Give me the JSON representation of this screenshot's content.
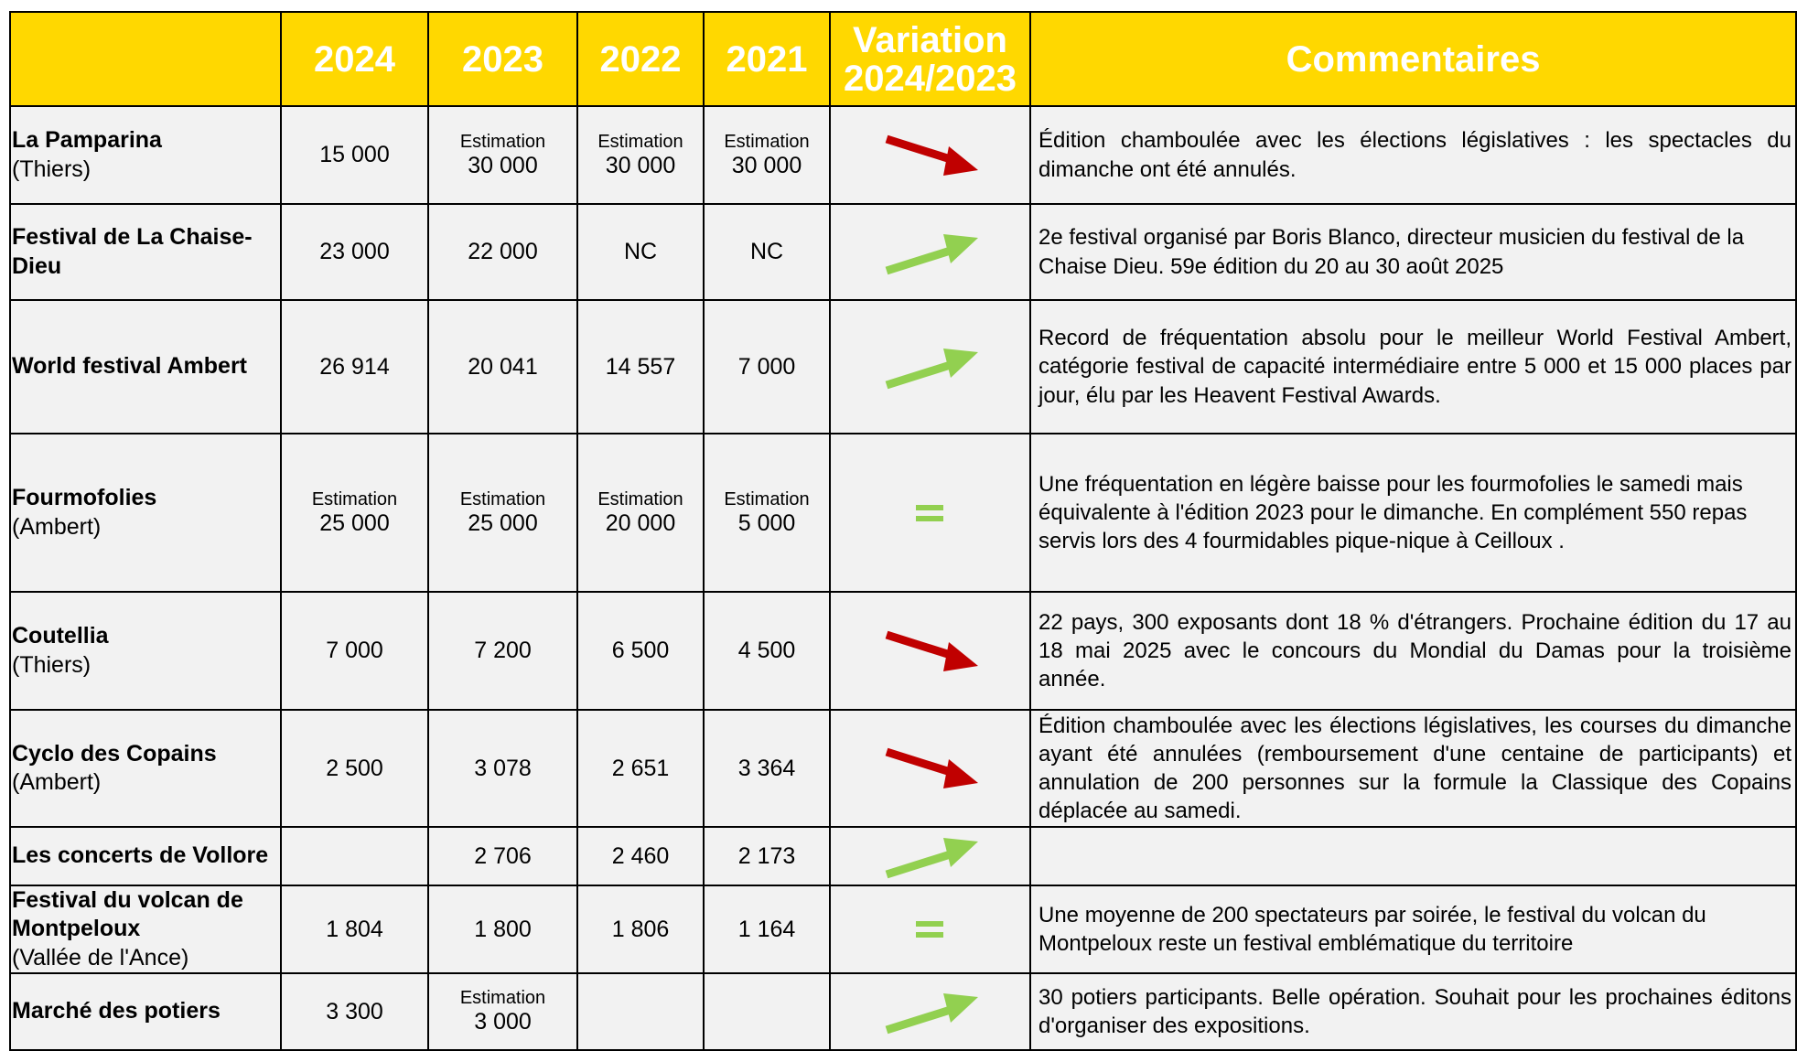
{
  "table": {
    "header": [
      "2024",
      "2023",
      "2022",
      "2021",
      "Variation 2024/2023",
      "Commentaires"
    ],
    "rows": [
      {
        "name": "La Pamparina",
        "place": "(Thiers)",
        "values": [
          "15 000",
          {
            "note": "Estimation",
            "value": "30 000"
          },
          {
            "note": "Estimation",
            "value": "30 000"
          },
          {
            "note": "Estimation",
            "value": "30 000"
          }
        ],
        "comment": "Édition chamboulée avec les élections législatives : les spectacles du dimanche ont été annulés."
      },
      {
        "name": "Festival de La Chaise-Dieu",
        "values": [
          "23 000",
          "22 000",
          "NC",
          "NC"
        ],
        "comment": "2e festival organisé par Boris Blanco, directeur musicien du festival de la Chaise Dieu. 59e édition du 20 au 30 août 2025"
      },
      {
        "name": "World festival Ambert",
        "values": [
          "26 914",
          "20 041",
          "14 557",
          "7 000"
        ],
        "comment": "Record de fréquentation absolu pour le meilleur World Festival Ambert, catégorie festival de capacité intermédiaire entre 5 000 et 15 000 places par jour, élu par les Heavent Festival Awards."
      },
      {
        "name": "Fourmofolies",
        "place": "(Ambert)",
        "values": [
          {
            "note": "Estimation",
            "value": "25 000"
          },
          {
            "note": "Estimation",
            "value": "25 000"
          },
          {
            "note": "Estimation",
            "value": "20 000"
          },
          {
            "note": "Estimation",
            "value": "5 000"
          }
        ],
        "comment": "Une fréquentation en légère baisse pour les fourmofolies le samedi mais équivalente à l'édition 2023 pour le dimanche. En complément 550 repas servis lors des 4 fourmidables pique-nique à Ceilloux ."
      },
      {
        "name": "Coutellia",
        "place": "(Thiers)",
        "values": [
          "7 000",
          "7 200",
          "6 500",
          "4 500"
        ],
        "comment": "22 pays, 300 exposants dont 18 % d'étrangers. Prochaine édition du 17 au 18 mai 2025 avec le concours du Mondial du Damas pour la troisième année."
      },
      {
        "name": "Cyclo des Copains",
        "place": "(Ambert)",
        "values": [
          "2 500",
          "3 078",
          "2 651",
          "3 364"
        ],
        "comment": "Édition chamboulée avec les élections législatives, les courses du dimanche ayant été annulées (remboursement d'une centaine de participants) et annulation de 200 personnes sur la formule la Classique des Copains déplacée au samedi."
      },
      {
        "name": "Les concerts de Vollore",
        "values": [
          null,
          "2 706",
          "2 460",
          "2 173"
        ],
        "comment": null
      },
      {
        "name": "Festival du volcan de Montpeloux",
        "place": "(Vallée de l'Ance)",
        "values": [
          "1 804",
          "1 800",
          "1 806",
          "1 164"
        ],
        "comment": "Une moyenne de 200 spectateurs par soirée, le festival du volcan du Montpeloux reste un festival emblématique du territoire"
      },
      {
        "name": "Marché des potiers",
        "values": [
          "3 300",
          {
            "note": "Estimation",
            "value": "3 000"
          },
          null,
          null
        ],
        "comment": "30 potiers participants. Belle opération. Souhait pour les prochaines éditons d'organiser des expositions."
      }
    ]
  }
}
